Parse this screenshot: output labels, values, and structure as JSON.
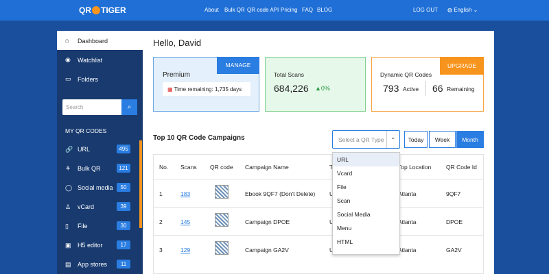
{
  "nav": {
    "logo_left": "QR",
    "logo_right": "TIGER",
    "links": [
      "About",
      "Bulk QR",
      "QR code API",
      "Pricing",
      "FAQ",
      "BLOG"
    ],
    "logout": "LOG OUT",
    "language": "English"
  },
  "sidebar": {
    "menu": [
      "Dashboard",
      "Watchlist",
      "Folders"
    ],
    "search_placeholder": "Search",
    "section_title": "MY QR CODES",
    "items": [
      {
        "label": "URL",
        "count": "495"
      },
      {
        "label": "Bulk QR",
        "count": "121"
      },
      {
        "label": "Social media",
        "count": "50"
      },
      {
        "label": "vCard",
        "count": "39"
      },
      {
        "label": "File",
        "count": "30"
      },
      {
        "label": "H5 editor",
        "count": "17"
      },
      {
        "label": "App stores",
        "count": "11"
      }
    ]
  },
  "main": {
    "greeting": "Hello, David",
    "plan_card": {
      "title": "Premium",
      "button": "MANAGE",
      "time_label": "Time remaining:",
      "time_value": "1,735 days"
    },
    "scans_card": {
      "title": "Total Scans",
      "value": "684,226",
      "change": "0%"
    },
    "dynamic_card": {
      "title": "Dynamic QR Codes",
      "button": "UPGRADE",
      "active_value": "793",
      "active_label": "Active",
      "remaining_value": "66",
      "remaining_label": "Remaining"
    },
    "campaigns": {
      "title": "Top 10 QR Code Campaigns",
      "select_placeholder": "Select a QR Type",
      "periods": [
        "Today",
        "Week",
        "Month"
      ],
      "dropdown_options": [
        "URL",
        "Vcard",
        "File",
        "Scan",
        "Social Media",
        "Menu",
        "HTML"
      ]
    },
    "table": {
      "headers": [
        "No.",
        "Scans",
        "QR code",
        "Campaign Name",
        "T",
        "Top Location",
        "QR Code Id"
      ],
      "rows": [
        [
          "1",
          "183",
          "Ebook 9QF7 (Don't Delete)",
          "U",
          "Atlanta",
          "9QF7"
        ],
        [
          "2",
          "145",
          "Campaign DPOE",
          "U",
          "Atlanta",
          "DPOE"
        ],
        [
          "3",
          "129",
          "Campaign GA2V",
          "U",
          "Atlanta",
          "GA2V"
        ]
      ]
    }
  }
}
